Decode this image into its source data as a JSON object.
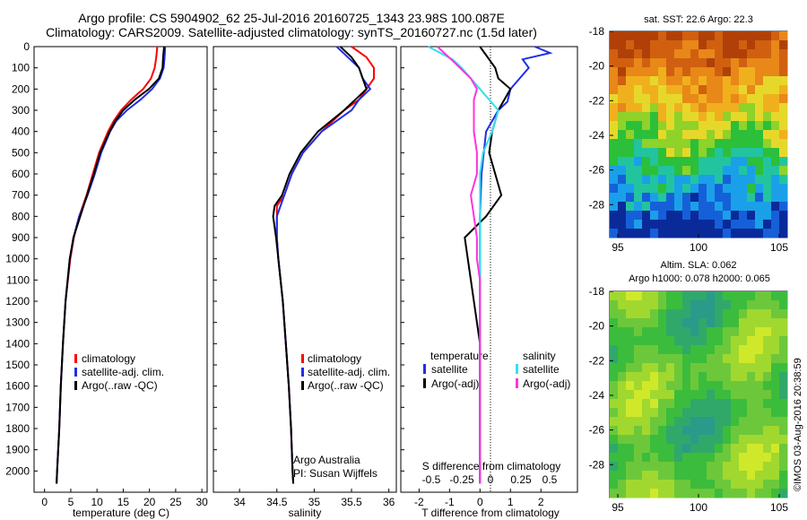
{
  "header": {
    "line1": "Argo profile: CS 5904902_62 25-Jul-2016 20160725_1343 23.98S 100.087E",
    "line2": "Climatology: CARS2009. Satellite-adjusted climatology: synTS_20160727.nc (1.5d later)"
  },
  "credit": "©IMOS 03-Aug-2016 20:38:59",
  "colors": {
    "red": "#ff0000",
    "blue": "#1f2fe6",
    "black": "#000000",
    "cyan": "#33e0ee",
    "magenta": "#ff33dd"
  },
  "depth_axis": {
    "ylim": [
      0,
      2100
    ],
    "ticks": [
      0,
      100,
      200,
      300,
      400,
      500,
      600,
      700,
      800,
      900,
      1000,
      1100,
      1200,
      1300,
      1400,
      1500,
      1600,
      1700,
      1800,
      1900,
      2000
    ]
  },
  "panels": {
    "temperature": {
      "xlabel": "temperature (deg C)",
      "xticks": [
        "0",
        "5",
        "10",
        "15",
        "20",
        "25",
        "30"
      ],
      "legend": [
        "climatology",
        "satellite-adj. clim.",
        "Argo(..raw -QC)"
      ]
    },
    "salinity": {
      "xlabel": "salinity",
      "xticks": [
        "34",
        "34.5",
        "35",
        "35.5",
        "36"
      ],
      "legend": [
        "climatology",
        "satellite-adj. clim.",
        "Argo(..raw -QC)"
      ],
      "note1": "Argo Australia",
      "note2": "PI: Susan Wijffels"
    },
    "difference": {
      "xlabel": "T difference from climatology",
      "xticks": [
        "-2",
        "-1",
        "0",
        "1",
        "2"
      ],
      "top_label": "S difference from climatology",
      "top_ticks": [
        "-0.5",
        "-0.25",
        "0",
        "0.25",
        "0.5"
      ],
      "legend_head_t": "temperature",
      "legend_head_s": "salinity",
      "legend_t": [
        "satellite",
        "Argo(-adj)"
      ],
      "legend_s": [
        "satellite",
        "Argo(-adj)"
      ]
    }
  },
  "maps": {
    "sst": {
      "title": "sat. SST: 22.6 Argo: 22.3",
      "yticks": [
        "-18",
        "-20",
        "-22",
        "-24",
        "-26",
        "-28"
      ],
      "xticks": [
        "95",
        "100",
        "105"
      ]
    },
    "sla": {
      "title1": "Altim. SLA: 0.062",
      "title2": "Argo h1000: 0.078 h2000: 0.065",
      "yticks": [
        "-18",
        "-20",
        "-22",
        "-24",
        "-26",
        "-28"
      ],
      "xticks": [
        "95",
        "100",
        "105"
      ]
    }
  },
  "chart_data": [
    {
      "type": "line",
      "title": "",
      "xlabel": "temperature (deg C)",
      "ylabel": "",
      "xlim": [
        -2,
        31
      ],
      "ylim": [
        0,
        2100
      ],
      "series": [
        {
          "name": "climatology",
          "color": "red",
          "depth": [
            0,
            50,
            100,
            150,
            200,
            250,
            300,
            350,
            400,
            500,
            600,
            700,
            800,
            900,
            1000,
            1200,
            1400,
            1600,
            1800,
            2000,
            2060
          ],
          "values": [
            21.5,
            21.3,
            21,
            20.3,
            18.8,
            16.5,
            14.6,
            13.2,
            12.1,
            10.4,
            9.2,
            8,
            6.6,
            5.6,
            4.9,
            4,
            3.5,
            3.1,
            2.8,
            2.4,
            2.3
          ]
        },
        {
          "name": "satellite-adj. clim.",
          "color": "blue",
          "depth": [
            0,
            50,
            100,
            150,
            200,
            250,
            300,
            350,
            400,
            500,
            600,
            700,
            800,
            900,
            1000,
            1200,
            1400,
            1600,
            1800,
            2000,
            2060
          ],
          "values": [
            23,
            22.9,
            22.7,
            22,
            20.5,
            18.3,
            15.7,
            13.7,
            12.5,
            10.8,
            9.6,
            8.2,
            6.6,
            5.5,
            4.8,
            4,
            3.5,
            3.1,
            2.8,
            2.4,
            2.3
          ]
        },
        {
          "name": "Argo(..raw -QC)",
          "color": "black",
          "depth": [
            0,
            50,
            100,
            150,
            200,
            250,
            300,
            350,
            400,
            500,
            600,
            700,
            800,
            900,
            1000,
            1200,
            1400,
            1600,
            1800,
            2000,
            2060
          ],
          "values": [
            22.8,
            22.6,
            22.5,
            21.8,
            19.9,
            17.2,
            15,
            13.5,
            12.4,
            10.6,
            9.4,
            8.1,
            6.8,
            5.5,
            4.8,
            4,
            3.5,
            3.1,
            2.8,
            2.4,
            2.3
          ]
        }
      ]
    },
    {
      "type": "line",
      "title": "",
      "xlabel": "salinity",
      "ylabel": "",
      "xlim": [
        33.65,
        36.1
      ],
      "ylim": [
        0,
        2100
      ],
      "series": [
        {
          "name": "climatology",
          "color": "red",
          "depth": [
            0,
            50,
            100,
            150,
            200,
            250,
            300,
            400,
            500,
            600,
            700,
            750,
            800,
            900,
            1000,
            1200,
            1400,
            1600,
            1800,
            2000,
            2060
          ],
          "values": [
            35.5,
            35.7,
            35.8,
            35.8,
            35.7,
            35.6,
            35.4,
            35.1,
            34.85,
            34.7,
            34.6,
            34.5,
            34.5,
            34.5,
            34.52,
            34.58,
            34.62,
            34.66,
            34.69,
            34.71,
            34.72
          ]
        },
        {
          "name": "satellite-adj. clim.",
          "color": "blue",
          "depth": [
            0,
            50,
            100,
            150,
            200,
            250,
            300,
            400,
            500,
            600,
            700,
            750,
            800,
            900,
            1000,
            1200,
            1400,
            1600,
            1800,
            2000,
            2060
          ],
          "values": [
            35.3,
            35.45,
            35.6,
            35.65,
            35.75,
            35.6,
            35.5,
            35.1,
            34.85,
            34.7,
            34.6,
            34.55,
            34.5,
            34.5,
            34.52,
            34.58,
            34.62,
            34.66,
            34.69,
            34.71,
            34.72
          ]
        },
        {
          "name": "Argo(..raw -QC)",
          "color": "black",
          "depth": [
            0,
            50,
            100,
            150,
            200,
            250,
            300,
            400,
            500,
            600,
            700,
            750,
            800,
            900,
            1000,
            1200,
            1400,
            1600,
            1800,
            2000,
            2060
          ],
          "values": [
            35.35,
            35.5,
            35.6,
            35.65,
            35.7,
            35.55,
            35.4,
            35.05,
            34.82,
            34.67,
            34.57,
            34.47,
            34.45,
            34.49,
            34.52,
            34.58,
            34.62,
            34.66,
            34.69,
            34.71,
            34.72
          ]
        }
      ]
    },
    {
      "type": "line",
      "title": "",
      "xlabel": "T difference from climatology",
      "ylabel": "",
      "xlim": [
        -2.6,
        3.2
      ],
      "ylim": [
        0,
        2100
      ],
      "series": [
        {
          "name": "satellite",
          "color": "blue",
          "depth": [
            0,
            30,
            60,
            100,
            150,
            200,
            260,
            300,
            400,
            600,
            800,
            1000,
            1400,
            2060
          ],
          "values": [
            1.8,
            2.3,
            1.4,
            1.6,
            1.3,
            1.0,
            0.9,
            0.6,
            0.2,
            0.05,
            0,
            0,
            0,
            0
          ]
        },
        {
          "name": "Argo(-adj)",
          "color": "black",
          "depth": [
            0,
            100,
            150,
            200,
            300,
            400,
            500,
            600,
            700,
            800,
            900,
            1000,
            1100,
            1200,
            1300,
            1400,
            1600,
            2060
          ],
          "values": [
            0,
            0.5,
            0.6,
            1.0,
            0.6,
            0.4,
            0.3,
            0.5,
            0.7,
            0.2,
            -0.5,
            -0.4,
            -0.3,
            -0.2,
            -0.1,
            0,
            0,
            0
          ]
        },
        {
          "name": "satellite",
          "color": "cyan",
          "depth": [
            0,
            60,
            100,
            150,
            200,
            300,
            400,
            500,
            600,
            700,
            800,
            1000,
            1400,
            2060
          ],
          "values": [
            -1.7,
            -0.9,
            -0.6,
            -0.3,
            0,
            0.6,
            0.4,
            0.1,
            0,
            0,
            0,
            0,
            0,
            0
          ]
        },
        {
          "name": "Argo(-adj)",
          "color": "magenta",
          "depth": [
            0,
            80,
            150,
            200,
            250,
            300,
            400,
            500,
            600,
            700,
            800,
            900,
            1000,
            1100,
            1400,
            2060
          ],
          "values": [
            -1.4,
            -0.8,
            -0.3,
            -0.1,
            -0.2,
            -0.2,
            -0.2,
            -0.1,
            -0.1,
            -0.3,
            -0.2,
            -0.1,
            -0.1,
            0,
            0,
            0
          ]
        }
      ]
    },
    {
      "type": "heatmap",
      "title": "sat. SST: 22.6 Argo: 22.3",
      "xlim": [
        94.5,
        105.5
      ],
      "ylim": [
        -29.9,
        -18
      ]
    },
    {
      "type": "heatmap",
      "title": "Altim. SLA: 0.062",
      "xlim": [
        94.5,
        105.5
      ],
      "ylim": [
        -29.9,
        -18
      ]
    }
  ]
}
